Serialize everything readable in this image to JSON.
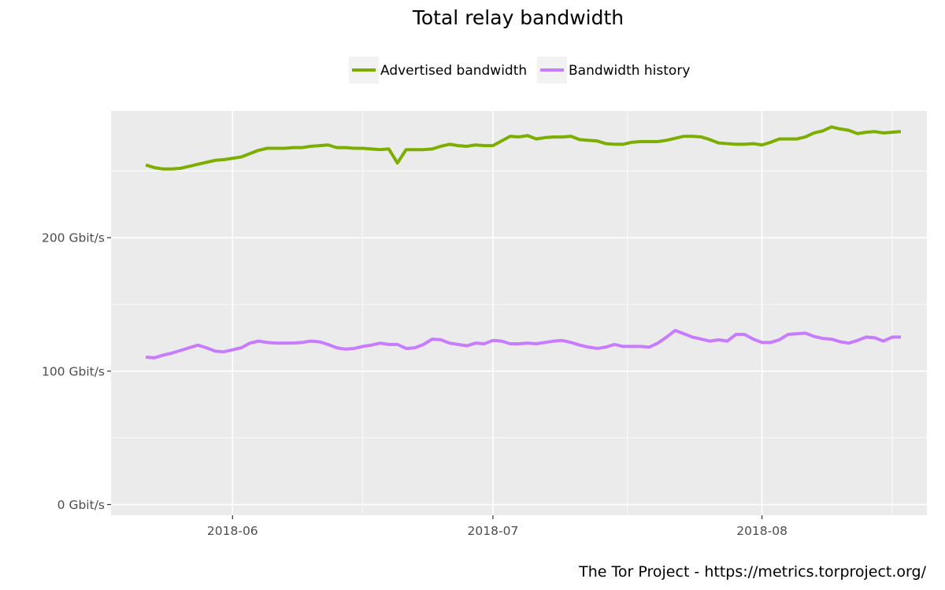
{
  "chart_data": {
    "type": "line",
    "title": "Total relay bandwidth",
    "xlabel": "",
    "ylabel": "",
    "x_start": "2018-05-22",
    "x_end": "2018-08-16",
    "xlim": [
      "2018-05-18",
      "2018-08-20"
    ],
    "ylim": [
      -8,
      295
    ],
    "x_ticks": [
      {
        "date": "2018-06-01",
        "label": "2018-06"
      },
      {
        "date": "2018-07-01",
        "label": "2018-07"
      },
      {
        "date": "2018-08-01",
        "label": "2018-08"
      }
    ],
    "y_ticks": [
      {
        "value": 0,
        "label": "0 Gbit/s"
      },
      {
        "value": 100,
        "label": "100 Gbit/s"
      },
      {
        "value": 200,
        "label": "200 Gbit/s"
      }
    ],
    "grid": true,
    "legend_position": "top",
    "series": [
      {
        "name": "Advertised bandwidth",
        "color": "#7cae00",
        "values": [
          254.5,
          252.5,
          251.5,
          251.5,
          252.0,
          253.5,
          255.0,
          256.5,
          258.0,
          258.5,
          259.5,
          260.5,
          263.0,
          265.5,
          267.0,
          267.0,
          267.0,
          267.5,
          267.5,
          268.5,
          269.0,
          269.5,
          267.5,
          267.5,
          267.0,
          267.0,
          266.5,
          266.0,
          266.5,
          256.0,
          266.0,
          266.0,
          266.0,
          266.5,
          268.5,
          270.0,
          269.0,
          268.5,
          269.5,
          269.0,
          269.0,
          272.5,
          276.0,
          275.5,
          276.5,
          274.0,
          275.0,
          275.5,
          275.5,
          276.0,
          273.5,
          273.0,
          272.5,
          270.5,
          270.0,
          270.0,
          271.5,
          272.0,
          272.0,
          272.0,
          273.0,
          274.5,
          276.0,
          276.0,
          275.5,
          273.5,
          271.0,
          270.5,
          270.0,
          270.0,
          270.5,
          269.5,
          271.5,
          274.0,
          274.0,
          274.0,
          275.5,
          278.5,
          280.0,
          283.0,
          281.5,
          280.5,
          278.0,
          279.0,
          279.5,
          278.5,
          279.0,
          279.5
        ]
      },
      {
        "name": "Bandwidth history",
        "color": "#c77cff",
        "values": [
          110.5,
          110.0,
          112.0,
          113.5,
          115.5,
          117.5,
          119.5,
          117.5,
          115.0,
          114.5,
          116.0,
          117.5,
          121.0,
          122.5,
          121.5,
          121.0,
          121.0,
          121.0,
          121.5,
          122.5,
          122.0,
          120.0,
          117.5,
          116.5,
          117.0,
          118.5,
          119.5,
          121.0,
          120.0,
          120.0,
          117.0,
          117.5,
          120.0,
          124.0,
          123.5,
          121.0,
          120.0,
          119.0,
          121.0,
          120.5,
          123.0,
          122.5,
          120.5,
          120.5,
          121.0,
          120.5,
          121.5,
          122.5,
          123.0,
          121.5,
          119.5,
          118.0,
          117.0,
          118.0,
          120.0,
          118.5,
          118.5,
          118.5,
          118.0,
          121.0,
          125.5,
          130.5,
          128.0,
          125.5,
          124.0,
          122.5,
          123.5,
          122.5,
          127.5,
          127.5,
          124.0,
          121.5,
          121.5,
          123.5,
          127.5,
          128.0,
          128.5,
          126.0,
          124.5,
          124.0,
          122.0,
          121.0,
          123.0,
          125.5,
          125.0,
          122.5,
          125.5,
          125.5
        ]
      }
    ]
  },
  "caption": "The Tor Project - https://metrics.torproject.org/"
}
